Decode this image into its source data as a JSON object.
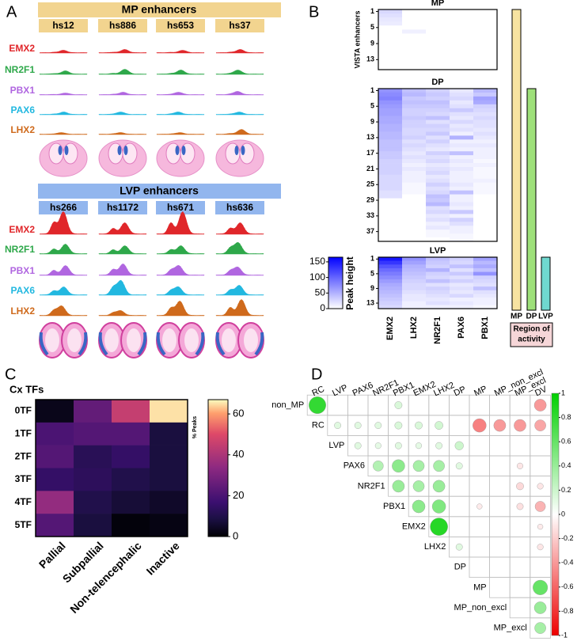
{
  "panel_labels": [
    "A",
    "B",
    "C",
    "D"
  ],
  "panel_a": {
    "groups": [
      {
        "title": "MP enhancers",
        "samples": [
          "hs12",
          "hs886",
          "hs653",
          "hs37"
        ]
      },
      {
        "title": "LVP enhancers",
        "samples": [
          "hs266",
          "hs1172",
          "hs671",
          "hs636"
        ]
      }
    ],
    "tracks": [
      "EMX2",
      "NR2F1",
      "PBX1",
      "PAX6",
      "LHX2"
    ],
    "track_colors": [
      "#e0262a",
      "#2ea84a",
      "#b066e0",
      "#22b8e0",
      "#cf6a1c"
    ]
  },
  "chart_data": [
    {
      "type": "heatmap",
      "ylabel": "VISTA enhancers",
      "categories": [
        "EMX2",
        "LHX2",
        "NR2F1",
        "PAX6",
        "PBX1"
      ],
      "blocks": [
        {
          "title": "MP",
          "yticks": [
            1,
            5,
            9,
            13
          ],
          "values": [
            [
              25,
              0,
              0,
              0,
              0
            ],
            [
              20,
              0,
              0,
              0,
              0
            ],
            [
              15,
              0,
              0,
              0,
              0
            ],
            [
              12,
              0,
              0,
              0,
              0
            ],
            [
              0,
              0,
              0,
              0,
              0
            ],
            [
              0,
              10,
              0,
              0,
              0
            ],
            [
              0,
              0,
              0,
              0,
              0
            ],
            [
              0,
              0,
              0,
              0,
              0
            ],
            [
              0,
              0,
              0,
              0,
              0
            ],
            [
              0,
              0,
              0,
              0,
              0
            ],
            [
              0,
              0,
              0,
              0,
              0
            ],
            [
              0,
              0,
              0,
              0,
              0
            ],
            [
              0,
              0,
              0,
              0,
              0
            ],
            [
              0,
              0,
              0,
              0,
              0
            ],
            [
              0,
              0,
              0,
              0,
              0
            ]
          ]
        },
        {
          "title": "DP",
          "yticks": [
            1,
            5,
            9,
            13,
            17,
            21,
            25,
            29,
            33,
            37
          ],
          "values": [
            [
              70,
              40,
              30,
              15,
              45
            ],
            [
              75,
              45,
              35,
              20,
              35
            ],
            [
              80,
              35,
              30,
              25,
              60
            ],
            [
              70,
              40,
              40,
              15,
              55
            ],
            [
              65,
              35,
              35,
              20,
              30
            ],
            [
              60,
              30,
              30,
              35,
              25
            ],
            [
              60,
              30,
              25,
              20,
              20
            ],
            [
              55,
              35,
              40,
              15,
              25
            ],
            [
              55,
              30,
              20,
              25,
              20
            ],
            [
              50,
              30,
              30,
              15,
              20
            ],
            [
              50,
              25,
              25,
              20,
              15
            ],
            [
              45,
              25,
              35,
              10,
              20
            ],
            [
              45,
              30,
              20,
              50,
              15
            ],
            [
              40,
              20,
              30,
              10,
              10
            ],
            [
              40,
              25,
              20,
              15,
              15
            ],
            [
              40,
              20,
              15,
              10,
              10
            ],
            [
              35,
              15,
              30,
              40,
              10
            ],
            [
              35,
              20,
              20,
              10,
              10
            ],
            [
              30,
              15,
              25,
              15,
              5
            ],
            [
              30,
              10,
              15,
              10,
              10
            ],
            [
              30,
              15,
              20,
              15,
              5
            ],
            [
              30,
              10,
              25,
              10,
              5
            ],
            [
              25,
              10,
              15,
              10,
              5
            ],
            [
              25,
              10,
              20,
              10,
              10
            ],
            [
              25,
              5,
              30,
              15,
              5
            ],
            [
              25,
              5,
              20,
              10,
              5
            ],
            [
              20,
              5,
              25,
              40,
              5
            ],
            [
              20,
              0,
              40,
              10,
              0
            ],
            [
              0,
              0,
              35,
              10,
              0
            ],
            [
              0,
              0,
              45,
              15,
              0
            ],
            [
              0,
              0,
              20,
              10,
              0
            ],
            [
              0,
              0,
              25,
              35,
              0
            ],
            [
              0,
              0,
              15,
              10,
              0
            ],
            [
              0,
              0,
              20,
              30,
              0
            ],
            [
              0,
              0,
              10,
              20,
              0
            ],
            [
              0,
              0,
              15,
              10,
              0
            ],
            [
              0,
              0,
              5,
              10,
              0
            ],
            [
              0,
              0,
              5,
              5,
              0
            ],
            [
              0,
              0,
              0,
              5,
              0
            ]
          ]
        },
        {
          "title": "LVP",
          "yticks": [
            1,
            5,
            9,
            13
          ],
          "values": [
            [
              150,
              70,
              40,
              30,
              60
            ],
            [
              130,
              60,
              35,
              25,
              45
            ],
            [
              110,
              50,
              30,
              40,
              55
            ],
            [
              95,
              45,
              50,
              20,
              40
            ],
            [
              85,
              40,
              30,
              35,
              70
            ],
            [
              75,
              35,
              25,
              20,
              30
            ],
            [
              65,
              30,
              40,
              30,
              25
            ],
            [
              55,
              25,
              20,
              15,
              20
            ],
            [
              50,
              25,
              30,
              20,
              40
            ],
            [
              45,
              20,
              25,
              15,
              20
            ],
            [
              40,
              15,
              20,
              25,
              15
            ],
            [
              35,
              15,
              15,
              10,
              10
            ],
            [
              30,
              10,
              20,
              15,
              10
            ],
            [
              25,
              10,
              10,
              10,
              5
            ]
          ]
        }
      ],
      "colorbar": {
        "label": "Peak height",
        "lim": [
          0,
          165
        ],
        "ticks": [
          0,
          50,
          100,
          150
        ],
        "colors": [
          "#ffffff",
          "#0000ff"
        ]
      },
      "regions": {
        "labels": [
          "MP",
          "DP",
          "LVP"
        ],
        "colors": [
          "#f7e3a1",
          "#9ee07a",
          "#6fd8cf"
        ],
        "title": [
          "Region of",
          "activity"
        ]
      }
    },
    {
      "type": "heatmap",
      "title": "Cx TFs",
      "rows": [
        "0TF",
        "1TF",
        "2TF",
        "3TF",
        "4TF",
        "5TF"
      ],
      "categories": [
        "Pallial",
        "Subpallial",
        "Non-telencephalic",
        "Inactive"
      ],
      "values": [
        [
          3,
          25,
          45,
          65
        ],
        [
          20,
          22,
          22,
          8
        ],
        [
          22,
          12,
          15,
          8
        ],
        [
          15,
          13,
          10,
          8
        ],
        [
          35,
          10,
          7,
          5
        ],
        [
          22,
          8,
          1,
          2
        ]
      ],
      "colorbar": {
        "label": "% Peaks",
        "lim": [
          0,
          67
        ],
        "ticks": [
          0,
          20,
          40,
          60
        ],
        "colormap": "magma"
      }
    },
    {
      "type": "corrplot",
      "x_labels": [
        "RC",
        "LVP",
        "PAX6",
        "NR2F1",
        "PBX1",
        "EMX2",
        "LHX2",
        "DP",
        "MP",
        "MP_non_excl",
        "MP_excl",
        "DV"
      ],
      "y_labels": [
        "non_MP",
        "RC",
        "LVP",
        "PAX6",
        "NR2F1",
        "PBX1",
        "EMX2",
        "LHX2",
        "DP",
        "MP",
        "MP_non_excl",
        "MP_excl"
      ],
      "values": [
        [
          0.8,
          0,
          0,
          0,
          0.15,
          0,
          0,
          0,
          0,
          0,
          0,
          -0.4
        ],
        [
          null,
          0.12,
          0.12,
          0.12,
          0.15,
          0.15,
          0.18,
          0,
          -0.5,
          -0.4,
          -0.4,
          -0.35
        ],
        [
          null,
          null,
          0.12,
          0.1,
          0.12,
          0.1,
          0.12,
          0.2,
          0,
          0,
          0,
          0
        ],
        [
          null,
          null,
          null,
          0.3,
          0.45,
          0.35,
          0.35,
          0.12,
          0,
          0,
          -0.1,
          0
        ],
        [
          null,
          null,
          null,
          null,
          0.4,
          0.35,
          0.4,
          0,
          0,
          0,
          -0.15,
          -0.1
        ],
        [
          null,
          null,
          null,
          null,
          null,
          0.45,
          0.5,
          0,
          -0.08,
          0,
          -0.12,
          -0.3
        ],
        [
          null,
          null,
          null,
          null,
          null,
          null,
          0.85,
          0,
          0,
          0,
          0,
          -0.08
        ],
        [
          null,
          null,
          null,
          null,
          null,
          null,
          null,
          0.12,
          0,
          0,
          0,
          -0.1
        ],
        [
          null,
          null,
          null,
          null,
          null,
          null,
          null,
          null,
          0,
          0,
          0,
          0
        ],
        [
          null,
          null,
          null,
          null,
          null,
          null,
          null,
          null,
          null,
          0,
          0,
          0.6
        ],
        [
          null,
          null,
          null,
          null,
          null,
          null,
          null,
          null,
          null,
          null,
          0,
          0.4
        ],
        [
          null,
          null,
          null,
          null,
          null,
          null,
          null,
          null,
          null,
          null,
          null,
          0.35
        ]
      ],
      "colorbar": {
        "lim": [
          -1,
          1
        ],
        "ticks": [
          -1,
          -0.8,
          -0.6,
          -0.4,
          -0.2,
          0,
          0.2,
          0.4,
          0.6,
          0.8,
          1
        ]
      },
      "colors": {
        "positive": "#00d000",
        "negative": "#ee0000"
      }
    }
  ]
}
